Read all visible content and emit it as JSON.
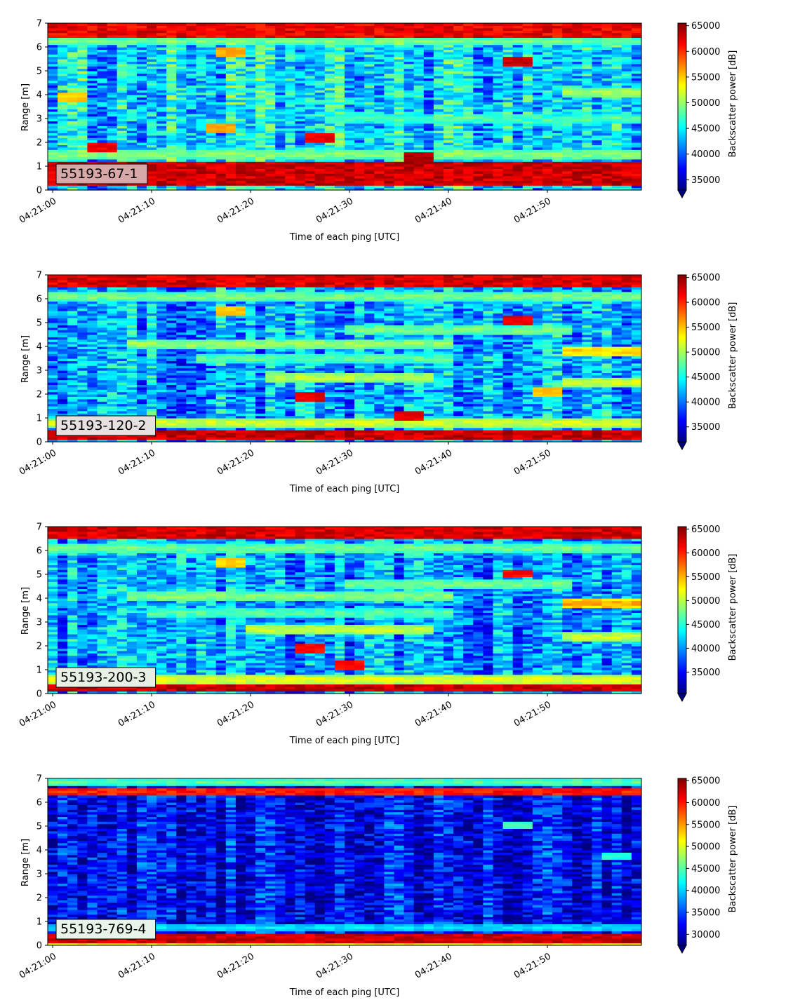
{
  "chart_data": [
    {
      "type": "heatmap",
      "label": "55193-67-1",
      "xlabel": "Time of each ping [UTC]",
      "ylabel": "Range [m]",
      "x_ticks": [
        "04:21:00",
        "04:21:10",
        "04:21:20",
        "04:21:30",
        "04:21:40",
        "04:21:50"
      ],
      "xlim_seconds": [
        -0.5,
        59.5
      ],
      "y_ticks": [
        0,
        1,
        2,
        3,
        4,
        5,
        6,
        7
      ],
      "ylim": [
        0,
        7
      ],
      "colorbar": {
        "label": "Backscatter power [dB]",
        "ticks": [
          35000,
          40000,
          45000,
          50000,
          55000,
          60000,
          65000
        ],
        "vmin": 33000,
        "vmax": 65500,
        "extend": "min",
        "colormap": "jet"
      },
      "label_box_color": "#d8a8a8",
      "features": {
        "base_level": 44000,
        "bands": [
          {
            "y0": 0.25,
            "y1": 1.2,
            "level": 65000
          },
          {
            "y0": 6.4,
            "y1": 7.0,
            "level": 64000
          }
        ],
        "streaks": [
          {
            "t0": 0,
            "t1": 60,
            "y": 1.5,
            "level": 50000
          },
          {
            "t0": 28,
            "t1": 60,
            "y": 3.0,
            "level": 48000
          },
          {
            "t0": 52,
            "t1": 60,
            "y": 4.1,
            "level": 51000
          },
          {
            "t0": 0,
            "t1": 60,
            "y": 6.25,
            "level": 49000
          }
        ],
        "hotspots": [
          {
            "t": 5,
            "y": 1.8,
            "level": 62000
          },
          {
            "t": 27,
            "y": 2.2,
            "level": 62000
          },
          {
            "t": 37,
            "y": 1.4,
            "level": 64000
          },
          {
            "t": 47,
            "y": 5.4,
            "level": 63000
          },
          {
            "t": 17,
            "y": 2.6,
            "level": 56000
          },
          {
            "t": 2,
            "y": 3.9,
            "level": 55000
          },
          {
            "t": 18,
            "y": 5.8,
            "level": 56000
          }
        ]
      }
    },
    {
      "type": "heatmap",
      "label": "55193-120-2",
      "xlabel": "Time of each ping [UTC]",
      "ylabel": "Range [m]",
      "x_ticks": [
        "04:21:00",
        "04:21:10",
        "04:21:20",
        "04:21:30",
        "04:21:40",
        "04:21:50"
      ],
      "xlim_seconds": [
        -0.5,
        59.5
      ],
      "y_ticks": [
        0,
        1,
        2,
        3,
        4,
        5,
        6,
        7
      ],
      "ylim": [
        0,
        7
      ],
      "colorbar": {
        "label": "Backscatter power [dB]",
        "ticks": [
          35000,
          40000,
          45000,
          50000,
          55000,
          60000,
          65000
        ],
        "vmin": 32000,
        "vmax": 65500,
        "extend": "min",
        "colormap": "jet"
      },
      "label_box_color": "#e6e0e0",
      "features": {
        "base_level": 41500,
        "bands": [
          {
            "y0": 0.05,
            "y1": 0.5,
            "level": 65000
          },
          {
            "y0": 6.5,
            "y1": 7.0,
            "level": 64500
          }
        ],
        "streaks": [
          {
            "t0": 0,
            "t1": 60,
            "y": 0.8,
            "level": 52000
          },
          {
            "t0": 0,
            "t1": 60,
            "y": 6.1,
            "level": 49000
          },
          {
            "t0": 8,
            "t1": 40,
            "y": 4.1,
            "level": 50000
          },
          {
            "t0": 15,
            "t1": 40,
            "y": 3.5,
            "level": 48000
          },
          {
            "t0": 22,
            "t1": 38,
            "y": 2.7,
            "level": 51000
          },
          {
            "t0": 52,
            "t1": 60,
            "y": 3.8,
            "level": 55000
          },
          {
            "t0": 52,
            "t1": 60,
            "y": 2.5,
            "level": 52000
          },
          {
            "t0": 30,
            "t1": 52,
            "y": 4.7,
            "level": 49000
          }
        ],
        "hotspots": [
          {
            "t": 26,
            "y": 1.95,
            "level": 62000
          },
          {
            "t": 36,
            "y": 1.15,
            "level": 62000
          },
          {
            "t": 47,
            "y": 5.1,
            "level": 62000
          },
          {
            "t": 18,
            "y": 5.5,
            "level": 55000
          },
          {
            "t": 50,
            "y": 2.1,
            "level": 55000
          }
        ]
      }
    },
    {
      "type": "heatmap",
      "label": "55193-200-3",
      "xlabel": "Time of each ping [UTC]",
      "ylabel": "Range [m]",
      "x_ticks": [
        "04:21:00",
        "04:21:10",
        "04:21:20",
        "04:21:30",
        "04:21:40",
        "04:21:50"
      ],
      "xlim_seconds": [
        -0.5,
        59.5
      ],
      "y_ticks": [
        0,
        1,
        2,
        3,
        4,
        5,
        6,
        7
      ],
      "ylim": [
        0,
        7
      ],
      "colorbar": {
        "label": "Backscatter power [dB]",
        "ticks": [
          35000,
          40000,
          45000,
          50000,
          55000,
          60000,
          65000
        ],
        "vmin": 30500,
        "vmax": 65500,
        "extend": "min",
        "colormap": "jet"
      },
      "label_box_color": "#e8f0e6",
      "features": {
        "base_level": 40000,
        "bands": [
          {
            "y0": 0.05,
            "y1": 0.4,
            "level": 65000
          },
          {
            "y0": 6.5,
            "y1": 7.0,
            "level": 64500
          }
        ],
        "streaks": [
          {
            "t0": 0,
            "t1": 60,
            "y": 0.6,
            "level": 52000
          },
          {
            "t0": 0,
            "t1": 60,
            "y": 6.1,
            "level": 48000
          },
          {
            "t0": 8,
            "t1": 40,
            "y": 4.1,
            "level": 49000
          },
          {
            "t0": 10,
            "t1": 40,
            "y": 3.4,
            "level": 47000
          },
          {
            "t0": 20,
            "t1": 38,
            "y": 2.7,
            "level": 51000
          },
          {
            "t0": 52,
            "t1": 60,
            "y": 3.8,
            "level": 56000
          },
          {
            "t0": 52,
            "t1": 60,
            "y": 2.4,
            "level": 51000
          },
          {
            "t0": 30,
            "t1": 52,
            "y": 4.6,
            "level": 48000
          }
        ],
        "hotspots": [
          {
            "t": 26,
            "y": 1.95,
            "level": 61000
          },
          {
            "t": 30,
            "y": 1.2,
            "level": 61000
          },
          {
            "t": 47,
            "y": 5.05,
            "level": 61000
          },
          {
            "t": 18,
            "y": 5.5,
            "level": 54000
          }
        ]
      }
    },
    {
      "type": "heatmap",
      "label": "55193-769-4",
      "xlabel": "Time of each ping [UTC]",
      "ylabel": "Range [m]",
      "x_ticks": [
        "04:21:00",
        "04:21:10",
        "04:21:20",
        "04:21:30",
        "04:21:40",
        "04:21:50"
      ],
      "xlim_seconds": [
        -0.5,
        59.5
      ],
      "y_ticks": [
        0,
        1,
        2,
        3,
        4,
        5,
        6,
        7
      ],
      "ylim": [
        0,
        7
      ],
      "colorbar": {
        "label": "Backscatter power [dB]",
        "ticks": [
          30000,
          35000,
          40000,
          45000,
          50000,
          55000,
          60000,
          65000
        ],
        "vmin": 27500,
        "vmax": 65500,
        "extend": "min",
        "colormap": "jet"
      },
      "label_box_color": "#e8f4ea",
      "features": {
        "base_level": 32000,
        "bands": [
          {
            "y0": 0.15,
            "y1": 0.45,
            "level": 64500
          },
          {
            "y0": 6.35,
            "y1": 6.6,
            "level": 62000
          }
        ],
        "streaks": [
          {
            "t0": 0,
            "t1": 60,
            "y": 0.75,
            "level": 41000
          },
          {
            "t0": 0,
            "t1": 60,
            "y": 6.85,
            "level": 45000
          },
          {
            "t0": 0,
            "t1": 60,
            "y": 0.05,
            "level": 52000
          }
        ],
        "hotspots": [
          {
            "t": 47,
            "y": 5.05,
            "level": 44000
          },
          {
            "t": 57,
            "y": 3.75,
            "level": 43000
          }
        ]
      }
    }
  ]
}
